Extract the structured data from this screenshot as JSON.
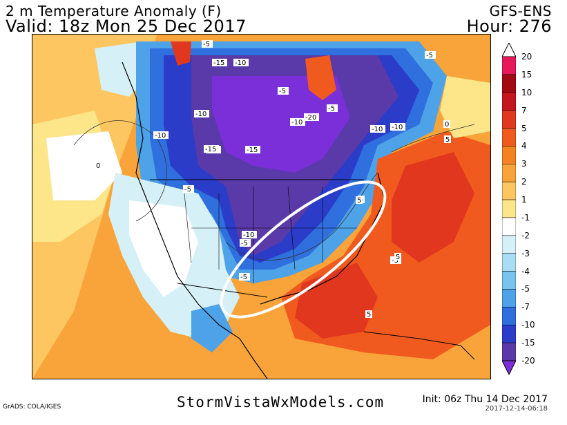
{
  "header": {
    "title": "2 m Temperature Anomaly (F)",
    "valid": "Valid: 18z Mon 25 Dec 2017",
    "model": "GFS-ENS",
    "hour": "Hour: 276"
  },
  "map": {
    "region": "North America",
    "annotation": "white ellipse over central/eastern US"
  },
  "contour_labels": [
    "-5",
    "-15",
    "-10",
    "-5",
    "-10",
    "-20",
    "-10",
    "-5",
    "-5",
    "-15",
    "-10",
    "-10",
    "-15",
    "-15",
    "-10",
    "-5",
    "5",
    "5",
    "-10",
    "-5",
    "5",
    "5",
    "-5",
    "0",
    "0",
    "-10",
    "-5",
    "5"
  ],
  "legend": {
    "levels": [
      "20",
      "15",
      "10",
      "7",
      "5",
      "4",
      "3",
      "2",
      "1",
      "-1",
      "-2",
      "-3",
      "-4",
      "-5",
      "-7",
      "-10",
      "-15",
      "-20"
    ],
    "colors": [
      "#e8195b",
      "#a10a13",
      "#c4161c",
      "#e2371f",
      "#f05a1e",
      "#f58220",
      "#f9a43a",
      "#fdc660",
      "#fde58a",
      "#ffffff",
      "#d6f0f7",
      "#a9ddf3",
      "#79c4ee",
      "#4ea2e8",
      "#2f6fde",
      "#2b3cc8",
      "#5a3aa8",
      "#7a2fd8"
    ]
  },
  "footer": {
    "grads": "GrADS: COLA/IGES",
    "site": "StormVistaWxModels.com",
    "init": "Init: 06z Thu 14 Dec 2017",
    "stamp": "2017-12-14-06:18"
  }
}
